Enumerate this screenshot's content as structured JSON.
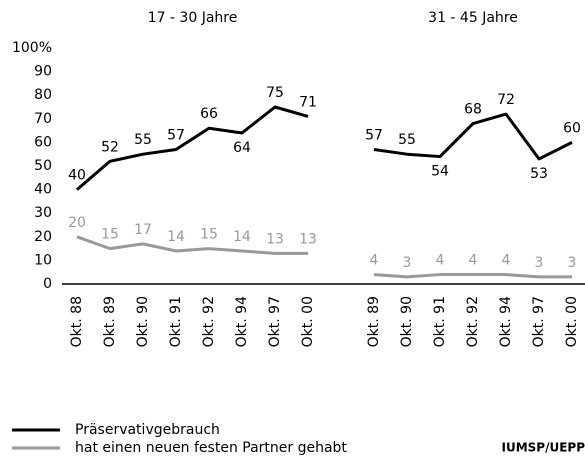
{
  "chart_data": {
    "type": "line",
    "group_titles": [
      "17 - 30 Jahre",
      "31 - 45 Jahre"
    ],
    "categories": [
      "Okt. 88",
      "Okt. 89",
      "Okt. 90",
      "Okt. 91",
      "Okt. 92",
      "Okt. 94",
      "Okt. 97",
      "Okt. 00",
      null,
      "Okt. 89",
      "Okt. 90",
      "Okt. 91",
      "Okt. 92",
      "Okt. 94",
      "Okt. 97",
      "Okt. 00"
    ],
    "series": [
      {
        "name": "Präservativgebrauch",
        "color": "#000000",
        "values": [
          40,
          52,
          55,
          57,
          66,
          64,
          75,
          71,
          null,
          57,
          55,
          54,
          68,
          72,
          53,
          60
        ]
      },
      {
        "name": "hat einen neuen festen Partner gehabt",
        "color": "#999999",
        "values": [
          20,
          15,
          17,
          14,
          15,
          14,
          13,
          13,
          null,
          4,
          3,
          4,
          4,
          4,
          3,
          3
        ]
      }
    ],
    "ylim": [
      0,
      100
    ],
    "yticks": [
      0,
      10,
      20,
      30,
      40,
      50,
      60,
      70,
      80,
      90,
      {
        "value": 100,
        "label": "100%"
      }
    ],
    "source": "IUMSP/UEPP"
  }
}
